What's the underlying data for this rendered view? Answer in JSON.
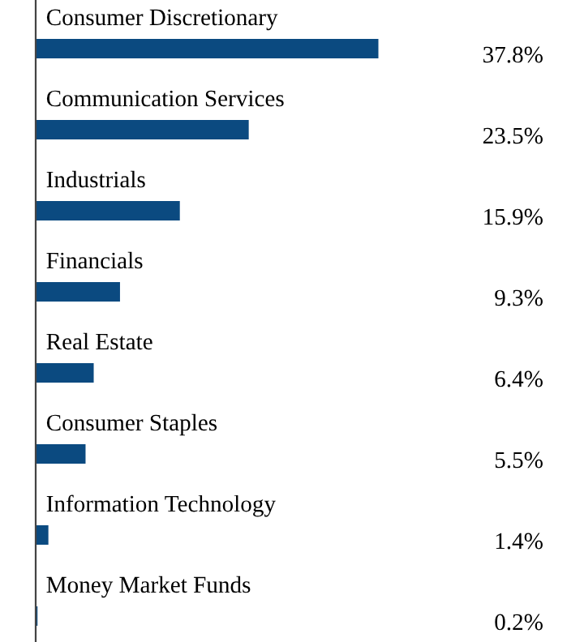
{
  "chart_data": {
    "type": "bar",
    "orientation": "horizontal",
    "categories": [
      "Consumer Discretionary",
      "Communication Services",
      "Industrials",
      "Financials",
      "Real Estate",
      "Consumer Staples",
      "Information Technology",
      "Money Market Funds"
    ],
    "values": [
      37.8,
      23.5,
      15.9,
      9.3,
      6.4,
      5.5,
      1.4,
      0.2
    ],
    "value_labels": [
      "37.8%",
      "23.5%",
      "15.9%",
      "9.3%",
      "6.4%",
      "5.5%",
      "1.4%",
      "0.2%"
    ],
    "color": "#0b4a80"
  }
}
